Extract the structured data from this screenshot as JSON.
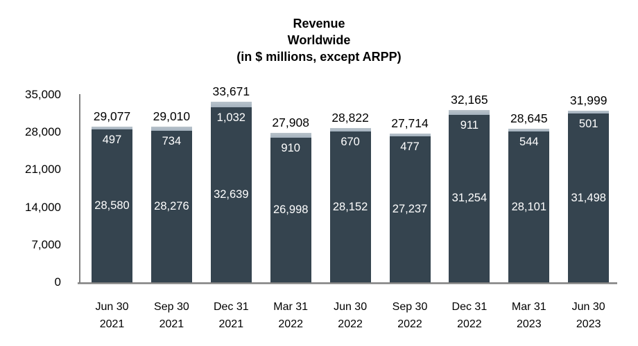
{
  "title": {
    "lines": [
      "Revenue",
      "Worldwide",
      "(in $ millions, except ARPP)"
    ]
  },
  "colors": {
    "bar_dark": "#35444f",
    "bar_light": "#a4b2be",
    "bar_light_top": "#b9c3cb",
    "axis_line": "#808080",
    "axis_line_shadow": "#bfbfbf",
    "total_label": "#000000",
    "inside_label": "#ffffff"
  },
  "chart_data": {
    "type": "bar",
    "stacked": true,
    "title": "Revenue Worldwide (in $ millions, except ARPP)",
    "xlabel": "",
    "ylabel": "",
    "legend": "none",
    "gridlines": "off",
    "categories": [
      [
        "Jun 30",
        "2021"
      ],
      [
        "Sep 30",
        "2021"
      ],
      [
        "Dec 31",
        "2021"
      ],
      [
        "Mar 31",
        "2022"
      ],
      [
        "Jun 30",
        "2022"
      ],
      [
        "Sep 30",
        "2022"
      ],
      [
        "Dec 31",
        "2022"
      ],
      [
        "Mar 31",
        "2023"
      ],
      [
        "Jun 30",
        "2023"
      ]
    ],
    "series": [
      {
        "name": "bottom-segment",
        "values": [
          28580,
          28276,
          32639,
          26998,
          28152,
          27237,
          31254,
          28101,
          31498
        ],
        "labels": [
          "28,580",
          "28,276",
          "32,639",
          "26,998",
          "28,152",
          "27,237",
          "31,254",
          "28,101",
          "31,498"
        ]
      },
      {
        "name": "top-segment",
        "values": [
          497,
          734,
          1032,
          910,
          670,
          477,
          911,
          544,
          501
        ],
        "labels": [
          "497",
          "734",
          "1,032",
          "910",
          "670",
          "477",
          "911",
          "544",
          "501"
        ]
      }
    ],
    "totals": [
      29077,
      29010,
      33671,
      27908,
      28822,
      27714,
      32165,
      28645,
      31999
    ],
    "total_labels": [
      "29,077",
      "29,010",
      "33,671",
      "27,908",
      "28,822",
      "27,714",
      "32,165",
      "28,645",
      "31,999"
    ],
    "y_axis": {
      "min": 0,
      "max": 35000,
      "tick_values": [
        0,
        7000,
        14000,
        21000,
        28000,
        35000
      ],
      "tick_labels": [
        "0",
        "7,000",
        "14,000",
        "21,000",
        "28,000",
        "35,000"
      ]
    }
  }
}
